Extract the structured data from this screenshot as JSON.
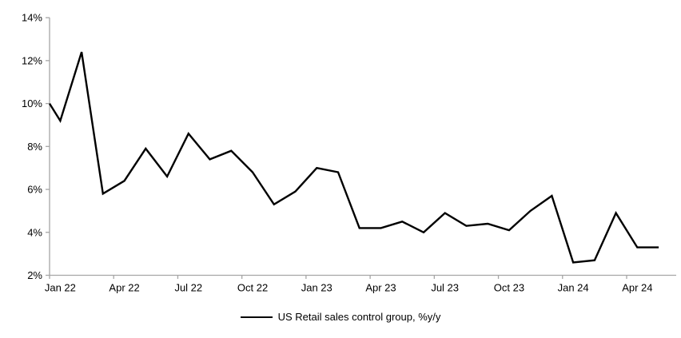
{
  "chart_data": {
    "type": "line",
    "title": "",
    "xlabel": "",
    "ylabel": "",
    "categories": [
      "Jan 22",
      "Feb 22",
      "Mar 22",
      "Apr 22",
      "May 22",
      "Jun 22",
      "Jul 22",
      "Aug 22",
      "Sep 22",
      "Oct 22",
      "Nov 22",
      "Dec 22",
      "Jan 23",
      "Feb 23",
      "Mar 23",
      "Apr 23",
      "May 23",
      "Jun 23",
      "Jul 23",
      "Aug 23",
      "Sep 23",
      "Oct 23",
      "Nov 23",
      "Dec 23",
      "Jan 24",
      "Feb 24",
      "Mar 24",
      "Apr 24",
      "May 24"
    ],
    "series": [
      {
        "name": "US Retail sales control group, %y/y",
        "color": "#000000",
        "values": [
          9.2,
          12.4,
          5.8,
          6.4,
          7.9,
          6.6,
          8.6,
          7.4,
          7.8,
          6.8,
          5.3,
          5.9,
          7.0,
          6.8,
          4.2,
          4.2,
          4.5,
          4.0,
          4.9,
          4.3,
          4.4,
          4.1,
          5.0,
          5.7,
          2.6,
          2.7,
          4.9,
          3.3,
          3.3
        ]
      }
    ],
    "edge_start_value": 10.0,
    "ylim": [
      2,
      14
    ],
    "y_tick_step": 2,
    "y_tick_labels": [
      "14%",
      "12%",
      "10%",
      "8%",
      "6%",
      "4%",
      "2%"
    ],
    "x_tick_labels": [
      "Jan 22",
      "Apr 22",
      "Jul 22",
      "Oct 22",
      "Jan 23",
      "Apr 23",
      "Jul 23",
      "Oct 23",
      "Jan 24",
      "Apr 24"
    ],
    "x_tick_every_n_months": 3,
    "grid": false,
    "legend_position": "bottom",
    "axis_color": "#a6a6a6",
    "tick_label_color": "#000000"
  },
  "legend": {
    "label": "US Retail sales control group, %y/y"
  }
}
